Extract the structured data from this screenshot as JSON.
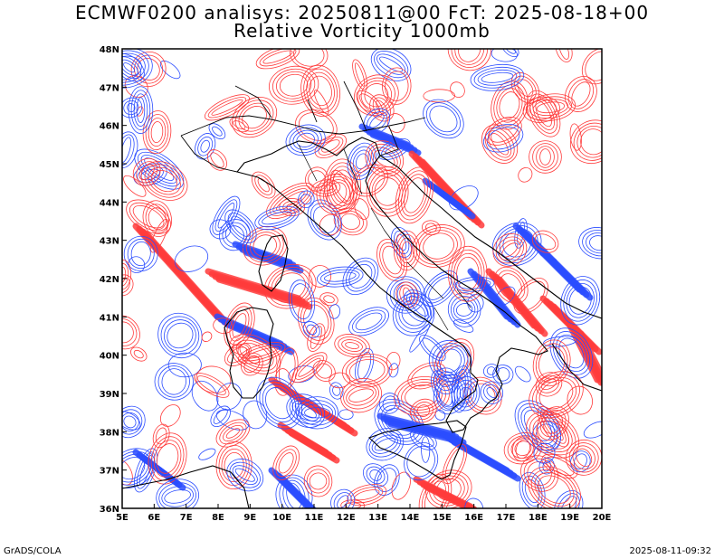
{
  "title_line1": "ECMWF0200 analisys: 20250811@00 FcT: 2025-08-18+00",
  "title_line2": "Relative Vorticity 1000mb",
  "footer_left": "GrADS/COLA",
  "footer_right": "2025-08-11-09:32",
  "map": {
    "lon_range": [
      5,
      20
    ],
    "lat_range": [
      36,
      48
    ],
    "lon_ticks": [
      "5E",
      "6E",
      "7E",
      "8E",
      "9E",
      "10E",
      "11E",
      "12E",
      "13E",
      "14E",
      "15E",
      "16E",
      "17E",
      "18E",
      "19E",
      "20E"
    ],
    "lat_ticks": [
      "36N",
      "37N",
      "38N",
      "39N",
      "40N",
      "41N",
      "42N",
      "43N",
      "44N",
      "45N",
      "46N",
      "47N",
      "48N"
    ],
    "colors": {
      "positive": "#ff3b3b",
      "negative": "#2b4dff",
      "coast": "#000000",
      "frame": "#000000"
    }
  }
}
